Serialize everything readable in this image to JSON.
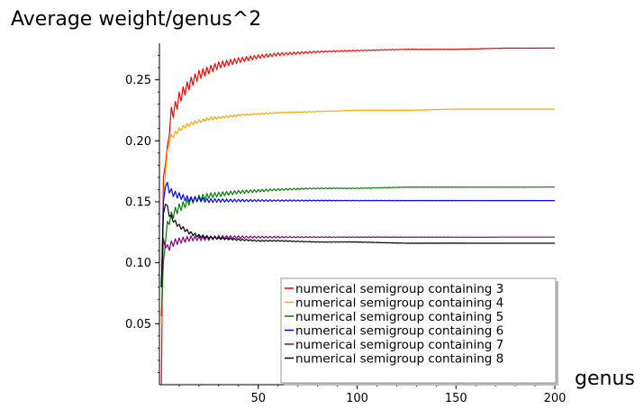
{
  "chart_data": {
    "type": "line",
    "title": "",
    "ylabel": "Average weight/genus^2",
    "xlabel": "genus",
    "xlim": [
      0,
      200
    ],
    "ylim": [
      0,
      0.28
    ],
    "xticks": [
      50,
      100,
      150,
      200
    ],
    "xtick_labels": [
      "50",
      "100",
      "150",
      "200"
    ],
    "yticks": [
      0.05,
      0.1,
      0.15,
      0.2,
      0.25
    ],
    "ytick_labels": [
      "0.05",
      "0.10",
      "0.15",
      "0.20",
      "0.25"
    ],
    "grid": false,
    "legend_position": "bottom-right",
    "series": [
      {
        "name": "numerical semigroup containing 3",
        "color": "#ff0000",
        "x": [
          1,
          2,
          3,
          4,
          5,
          6,
          8,
          10,
          13,
          16,
          20,
          25,
          30,
          40,
          50,
          60,
          80,
          100,
          125,
          150,
          175,
          200
        ],
        "y": [
          0.0,
          0.17,
          0.186,
          0.19,
          0.21,
          0.222,
          0.227,
          0.235,
          0.242,
          0.248,
          0.254,
          0.258,
          0.262,
          0.266,
          0.269,
          0.271,
          0.273,
          0.274,
          0.275,
          0.275,
          0.276,
          0.276
        ],
        "oscillation": 0.006
      },
      {
        "name": "numerical semigroup containing 4",
        "color": "#ffa500",
        "x": [
          1,
          2,
          3,
          4,
          5,
          6,
          8,
          10,
          13,
          16,
          20,
          25,
          30,
          40,
          50,
          60,
          80,
          100,
          125,
          150,
          175,
          200
        ],
        "y": [
          0.05,
          0.15,
          0.175,
          0.19,
          0.2,
          0.203,
          0.206,
          0.209,
          0.212,
          0.214,
          0.216,
          0.218,
          0.219,
          0.221,
          0.222,
          0.223,
          0.224,
          0.225,
          0.225,
          0.226,
          0.226,
          0.226
        ],
        "oscillation": 0.002
      },
      {
        "name": "numerical semigroup containing 5",
        "color": "#008000",
        "x": [
          1,
          2,
          3,
          4,
          5,
          6,
          8,
          10,
          13,
          16,
          20,
          25,
          30,
          40,
          50,
          60,
          80,
          100,
          125,
          150,
          175,
          200
        ],
        "y": [
          0.056,
          0.1,
          0.12,
          0.13,
          0.135,
          0.138,
          0.142,
          0.145,
          0.148,
          0.151,
          0.153,
          0.155,
          0.156,
          0.158,
          0.159,
          0.16,
          0.161,
          0.161,
          0.162,
          0.162,
          0.162,
          0.162
        ],
        "oscillation": 0.004
      },
      {
        "name": "numerical semigroup containing 6",
        "color": "#0000ff",
        "x": [
          1,
          2,
          3,
          4,
          5,
          6,
          8,
          10,
          13,
          16,
          20,
          25,
          30,
          40,
          50,
          60,
          80,
          100,
          125,
          150,
          175,
          200
        ],
        "y": [
          0.08,
          0.15,
          0.165,
          0.163,
          0.16,
          0.158,
          0.156,
          0.155,
          0.153,
          0.152,
          0.152,
          0.151,
          0.151,
          0.151,
          0.151,
          0.151,
          0.151,
          0.151,
          0.151,
          0.151,
          0.151,
          0.151
        ],
        "oscillation": 0.003
      },
      {
        "name": "numerical semigroup containing 7",
        "color": "#800080",
        "x": [
          1,
          2,
          3,
          4,
          5,
          6,
          8,
          10,
          13,
          16,
          20,
          25,
          30,
          40,
          50,
          60,
          80,
          100,
          125,
          150,
          175,
          200
        ],
        "y": [
          0.08,
          0.12,
          0.115,
          0.112,
          0.113,
          0.115,
          0.117,
          0.118,
          0.119,
          0.12,
          0.12,
          0.12,
          0.121,
          0.121,
          0.121,
          0.121,
          0.121,
          0.121,
          0.121,
          0.121,
          0.121,
          0.121
        ],
        "oscillation": 0.003
      },
      {
        "name": "numerical semigroup containing 8",
        "color": "#000000",
        "x": [
          1,
          2,
          3,
          4,
          5,
          6,
          8,
          10,
          13,
          16,
          20,
          25,
          30,
          40,
          50,
          60,
          80,
          100,
          125,
          150,
          175,
          200
        ],
        "y": [
          0.08,
          0.14,
          0.15,
          0.145,
          0.14,
          0.137,
          0.133,
          0.13,
          0.127,
          0.124,
          0.122,
          0.121,
          0.12,
          0.119,
          0.118,
          0.118,
          0.117,
          0.117,
          0.116,
          0.116,
          0.116,
          0.116
        ],
        "oscillation": 0.002
      }
    ]
  }
}
